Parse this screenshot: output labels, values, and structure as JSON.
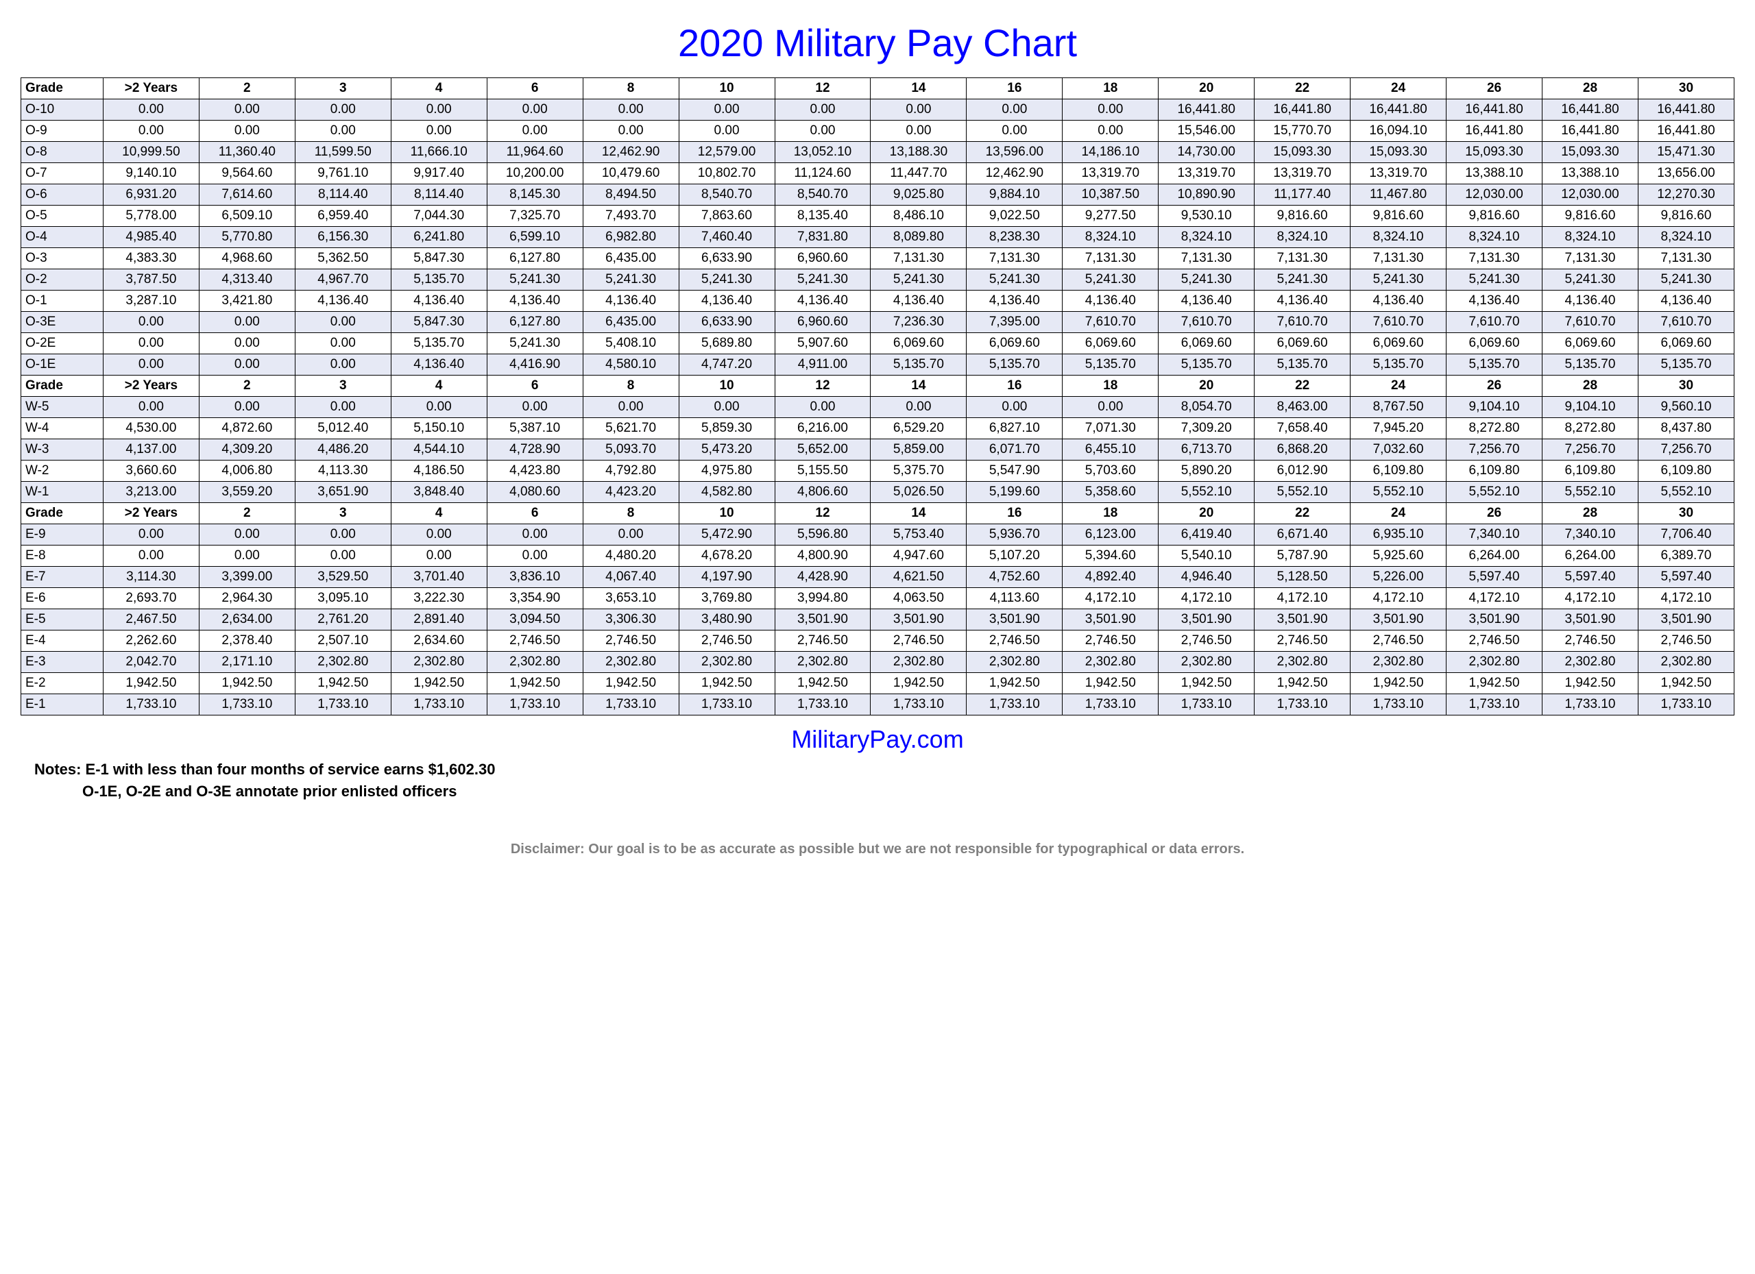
{
  "title": "2020 Military Pay Chart",
  "site": "MilitaryPay.com",
  "note1": "Notes: E-1 with less than four months of service earns $1,602.30",
  "note2": "O-1E, O-2E and O-3E annotate prior enlisted officers",
  "disclaimer": "Disclaimer: Our goal is to be as accurate as possible but we are not responsible for typographical or data errors.",
  "headers": [
    "Grade",
    ">2 Years",
    "2",
    "3",
    "4",
    "6",
    "8",
    "10",
    "12",
    "14",
    "16",
    "18",
    "20",
    "22",
    "24",
    "26",
    "28",
    "30"
  ],
  "sections": [
    {
      "rows": [
        {
          "grade": "O-10",
          "alt": true,
          "cells": [
            "0.00",
            "0.00",
            "0.00",
            "0.00",
            "0.00",
            "0.00",
            "0.00",
            "0.00",
            "0.00",
            "0.00",
            "0.00",
            "16,441.80",
            "16,441.80",
            "16,441.80",
            "16,441.80",
            "16,441.80",
            "16,441.80"
          ]
        },
        {
          "grade": "O-9",
          "alt": false,
          "cells": [
            "0.00",
            "0.00",
            "0.00",
            "0.00",
            "0.00",
            "0.00",
            "0.00",
            "0.00",
            "0.00",
            "0.00",
            "0.00",
            "15,546.00",
            "15,770.70",
            "16,094.10",
            "16,441.80",
            "16,441.80",
            "16,441.80"
          ]
        },
        {
          "grade": "O-8",
          "alt": true,
          "cells": [
            "10,999.50",
            "11,360.40",
            "11,599.50",
            "11,666.10",
            "11,964.60",
            "12,462.90",
            "12,579.00",
            "13,052.10",
            "13,188.30",
            "13,596.00",
            "14,186.10",
            "14,730.00",
            "15,093.30",
            "15,093.30",
            "15,093.30",
            "15,093.30",
            "15,471.30"
          ]
        },
        {
          "grade": "O-7",
          "alt": false,
          "cells": [
            "9,140.10",
            "9,564.60",
            "9,761.10",
            "9,917.40",
            "10,200.00",
            "10,479.60",
            "10,802.70",
            "11,124.60",
            "11,447.70",
            "12,462.90",
            "13,319.70",
            "13,319.70",
            "13,319.70",
            "13,319.70",
            "13,388.10",
            "13,388.10",
            "13,656.00"
          ]
        },
        {
          "grade": "O-6",
          "alt": true,
          "cells": [
            "6,931.20",
            "7,614.60",
            "8,114.40",
            "8,114.40",
            "8,145.30",
            "8,494.50",
            "8,540.70",
            "8,540.70",
            "9,025.80",
            "9,884.10",
            "10,387.50",
            "10,890.90",
            "11,177.40",
            "11,467.80",
            "12,030.00",
            "12,030.00",
            "12,270.30"
          ]
        },
        {
          "grade": "O-5",
          "alt": false,
          "cells": [
            "5,778.00",
            "6,509.10",
            "6,959.40",
            "7,044.30",
            "7,325.70",
            "7,493.70",
            "7,863.60",
            "8,135.40",
            "8,486.10",
            "9,022.50",
            "9,277.50",
            "9,530.10",
            "9,816.60",
            "9,816.60",
            "9,816.60",
            "9,816.60",
            "9,816.60"
          ]
        },
        {
          "grade": "O-4",
          "alt": true,
          "cells": [
            "4,985.40",
            "5,770.80",
            "6,156.30",
            "6,241.80",
            "6,599.10",
            "6,982.80",
            "7,460.40",
            "7,831.80",
            "8,089.80",
            "8,238.30",
            "8,324.10",
            "8,324.10",
            "8,324.10",
            "8,324.10",
            "8,324.10",
            "8,324.10",
            "8,324.10"
          ]
        },
        {
          "grade": "O-3",
          "alt": false,
          "cells": [
            "4,383.30",
            "4,968.60",
            "5,362.50",
            "5,847.30",
            "6,127.80",
            "6,435.00",
            "6,633.90",
            "6,960.60",
            "7,131.30",
            "7,131.30",
            "7,131.30",
            "7,131.30",
            "7,131.30",
            "7,131.30",
            "7,131.30",
            "7,131.30",
            "7,131.30"
          ]
        },
        {
          "grade": "O-2",
          "alt": true,
          "cells": [
            "3,787.50",
            "4,313.40",
            "4,967.70",
            "5,135.70",
            "5,241.30",
            "5,241.30",
            "5,241.30",
            "5,241.30",
            "5,241.30",
            "5,241.30",
            "5,241.30",
            "5,241.30",
            "5,241.30",
            "5,241.30",
            "5,241.30",
            "5,241.30",
            "5,241.30"
          ]
        },
        {
          "grade": "O-1",
          "alt": false,
          "cells": [
            "3,287.10",
            "3,421.80",
            "4,136.40",
            "4,136.40",
            "4,136.40",
            "4,136.40",
            "4,136.40",
            "4,136.40",
            "4,136.40",
            "4,136.40",
            "4,136.40",
            "4,136.40",
            "4,136.40",
            "4,136.40",
            "4,136.40",
            "4,136.40",
            "4,136.40"
          ]
        },
        {
          "grade": "O-3E",
          "alt": true,
          "cells": [
            "0.00",
            "0.00",
            "0.00",
            "5,847.30",
            "6,127.80",
            "6,435.00",
            "6,633.90",
            "6,960.60",
            "7,236.30",
            "7,395.00",
            "7,610.70",
            "7,610.70",
            "7,610.70",
            "7,610.70",
            "7,610.70",
            "7,610.70",
            "7,610.70"
          ]
        },
        {
          "grade": "O-2E",
          "alt": false,
          "cells": [
            "0.00",
            "0.00",
            "0.00",
            "5,135.70",
            "5,241.30",
            "5,408.10",
            "5,689.80",
            "5,907.60",
            "6,069.60",
            "6,069.60",
            "6,069.60",
            "6,069.60",
            "6,069.60",
            "6,069.60",
            "6,069.60",
            "6,069.60",
            "6,069.60"
          ]
        },
        {
          "grade": "O-1E",
          "alt": true,
          "cells": [
            "0.00",
            "0.00",
            "0.00",
            "4,136.40",
            "4,416.90",
            "4,580.10",
            "4,747.20",
            "4,911.00",
            "5,135.70",
            "5,135.70",
            "5,135.70",
            "5,135.70",
            "5,135.70",
            "5,135.70",
            "5,135.70",
            "5,135.70",
            "5,135.70"
          ]
        }
      ]
    },
    {
      "rows": [
        {
          "grade": "W-5",
          "alt": true,
          "cells": [
            "0.00",
            "0.00",
            "0.00",
            "0.00",
            "0.00",
            "0.00",
            "0.00",
            "0.00",
            "0.00",
            "0.00",
            "0.00",
            "8,054.70",
            "8,463.00",
            "8,767.50",
            "9,104.10",
            "9,104.10",
            "9,560.10"
          ]
        },
        {
          "grade": "W-4",
          "alt": false,
          "cells": [
            "4,530.00",
            "4,872.60",
            "5,012.40",
            "5,150.10",
            "5,387.10",
            "5,621.70",
            "5,859.30",
            "6,216.00",
            "6,529.20",
            "6,827.10",
            "7,071.30",
            "7,309.20",
            "7,658.40",
            "7,945.20",
            "8,272.80",
            "8,272.80",
            "8,437.80"
          ]
        },
        {
          "grade": "W-3",
          "alt": true,
          "cells": [
            "4,137.00",
            "4,309.20",
            "4,486.20",
            "4,544.10",
            "4,728.90",
            "5,093.70",
            "5,473.20",
            "5,652.00",
            "5,859.00",
            "6,071.70",
            "6,455.10",
            "6,713.70",
            "6,868.20",
            "7,032.60",
            "7,256.70",
            "7,256.70",
            "7,256.70"
          ]
        },
        {
          "grade": "W-2",
          "alt": false,
          "cells": [
            "3,660.60",
            "4,006.80",
            "4,113.30",
            "4,186.50",
            "4,423.80",
            "4,792.80",
            "4,975.80",
            "5,155.50",
            "5,375.70",
            "5,547.90",
            "5,703.60",
            "5,890.20",
            "6,012.90",
            "6,109.80",
            "6,109.80",
            "6,109.80",
            "6,109.80"
          ]
        },
        {
          "grade": "W-1",
          "alt": true,
          "cells": [
            "3,213.00",
            "3,559.20",
            "3,651.90",
            "3,848.40",
            "4,080.60",
            "4,423.20",
            "4,582.80",
            "4,806.60",
            "5,026.50",
            "5,199.60",
            "5,358.60",
            "5,552.10",
            "5,552.10",
            "5,552.10",
            "5,552.10",
            "5,552.10",
            "5,552.10"
          ]
        }
      ]
    },
    {
      "rows": [
        {
          "grade": "E-9",
          "alt": true,
          "cells": [
            "0.00",
            "0.00",
            "0.00",
            "0.00",
            "0.00",
            "0.00",
            "5,472.90",
            "5,596.80",
            "5,753.40",
            "5,936.70",
            "6,123.00",
            "6,419.40",
            "6,671.40",
            "6,935.10",
            "7,340.10",
            "7,340.10",
            "7,706.40"
          ]
        },
        {
          "grade": "E-8",
          "alt": false,
          "cells": [
            "0.00",
            "0.00",
            "0.00",
            "0.00",
            "0.00",
            "4,480.20",
            "4,678.20",
            "4,800.90",
            "4,947.60",
            "5,107.20",
            "5,394.60",
            "5,540.10",
            "5,787.90",
            "5,925.60",
            "6,264.00",
            "6,264.00",
            "6,389.70"
          ]
        },
        {
          "grade": "E-7",
          "alt": true,
          "cells": [
            "3,114.30",
            "3,399.00",
            "3,529.50",
            "3,701.40",
            "3,836.10",
            "4,067.40",
            "4,197.90",
            "4,428.90",
            "4,621.50",
            "4,752.60",
            "4,892.40",
            "4,946.40",
            "5,128.50",
            "5,226.00",
            "5,597.40",
            "5,597.40",
            "5,597.40"
          ]
        },
        {
          "grade": "E-6",
          "alt": false,
          "cells": [
            "2,693.70",
            "2,964.30",
            "3,095.10",
            "3,222.30",
            "3,354.90",
            "3,653.10",
            "3,769.80",
            "3,994.80",
            "4,063.50",
            "4,113.60",
            "4,172.10",
            "4,172.10",
            "4,172.10",
            "4,172.10",
            "4,172.10",
            "4,172.10",
            "4,172.10"
          ]
        },
        {
          "grade": "E-5",
          "alt": true,
          "cells": [
            "2,467.50",
            "2,634.00",
            "2,761.20",
            "2,891.40",
            "3,094.50",
            "3,306.30",
            "3,480.90",
            "3,501.90",
            "3,501.90",
            "3,501.90",
            "3,501.90",
            "3,501.90",
            "3,501.90",
            "3,501.90",
            "3,501.90",
            "3,501.90",
            "3,501.90"
          ]
        },
        {
          "grade": "E-4",
          "alt": false,
          "cells": [
            "2,262.60",
            "2,378.40",
            "2,507.10",
            "2,634.60",
            "2,746.50",
            "2,746.50",
            "2,746.50",
            "2,746.50",
            "2,746.50",
            "2,746.50",
            "2,746.50",
            "2,746.50",
            "2,746.50",
            "2,746.50",
            "2,746.50",
            "2,746.50",
            "2,746.50"
          ]
        },
        {
          "grade": "E-3",
          "alt": true,
          "cells": [
            "2,042.70",
            "2,171.10",
            "2,302.80",
            "2,302.80",
            "2,302.80",
            "2,302.80",
            "2,302.80",
            "2,302.80",
            "2,302.80",
            "2,302.80",
            "2,302.80",
            "2,302.80",
            "2,302.80",
            "2,302.80",
            "2,302.80",
            "2,302.80",
            "2,302.80"
          ]
        },
        {
          "grade": "E-2",
          "alt": false,
          "cells": [
            "1,942.50",
            "1,942.50",
            "1,942.50",
            "1,942.50",
            "1,942.50",
            "1,942.50",
            "1,942.50",
            "1,942.50",
            "1,942.50",
            "1,942.50",
            "1,942.50",
            "1,942.50",
            "1,942.50",
            "1,942.50",
            "1,942.50",
            "1,942.50",
            "1,942.50"
          ]
        },
        {
          "grade": "E-1",
          "alt": true,
          "cells": [
            "1,733.10",
            "1,733.10",
            "1,733.10",
            "1,733.10",
            "1,733.10",
            "1,733.10",
            "1,733.10",
            "1,733.10",
            "1,733.10",
            "1,733.10",
            "1,733.10",
            "1,733.10",
            "1,733.10",
            "1,733.10",
            "1,733.10",
            "1,733.10",
            "1,733.10"
          ]
        }
      ]
    }
  ]
}
